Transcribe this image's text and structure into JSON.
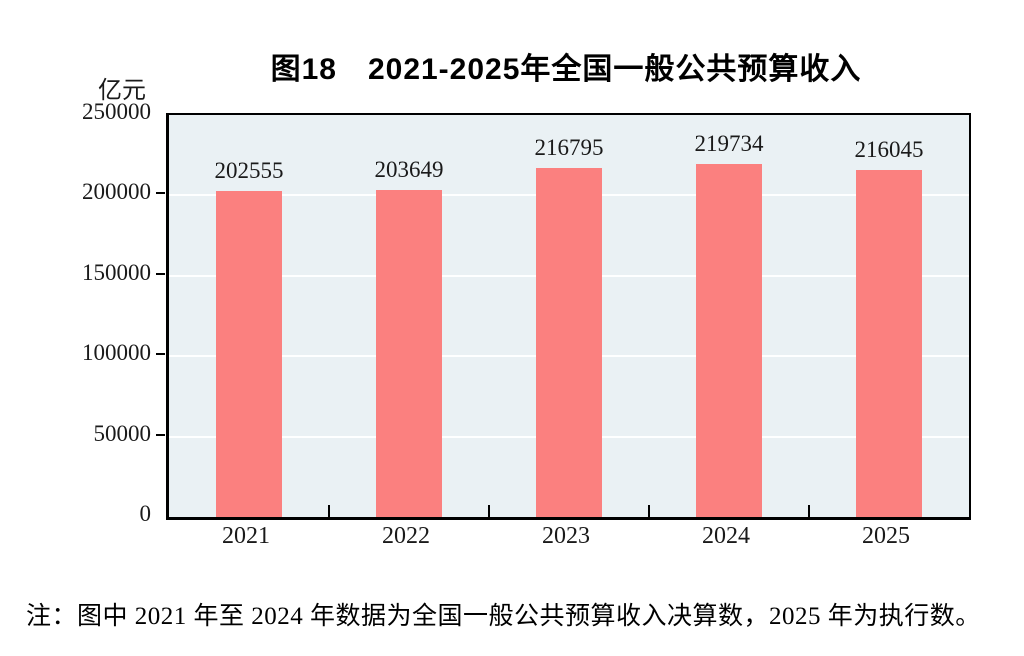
{
  "chart_data": {
    "type": "bar",
    "title": "图18　2021-2025年全国一般公共预算收入",
    "unit_label": "亿元",
    "categories": [
      "2021",
      "2022",
      "2023",
      "2024",
      "2025"
    ],
    "values": [
      202555,
      203649,
      216795,
      219734,
      216045
    ],
    "value_labels": [
      "202555",
      "203649",
      "216795",
      "219734",
      "216045"
    ],
    "ylim": [
      0,
      250000
    ],
    "yticks": [
      0,
      50000,
      100000,
      150000,
      200000,
      250000
    ],
    "ytick_labels": [
      "0",
      "50000",
      "100000",
      "150000",
      "200000",
      "250000"
    ],
    "grid": "horizontal-white",
    "legend_position": "none",
    "bar_color": "#FB807F",
    "plot_background": "#EAF1F4",
    "axis_color": "#000000"
  },
  "note": "注：图中 2021 年至 2024 年数据为全国一般公共预算收入决算数，2025 年为执行数。"
}
